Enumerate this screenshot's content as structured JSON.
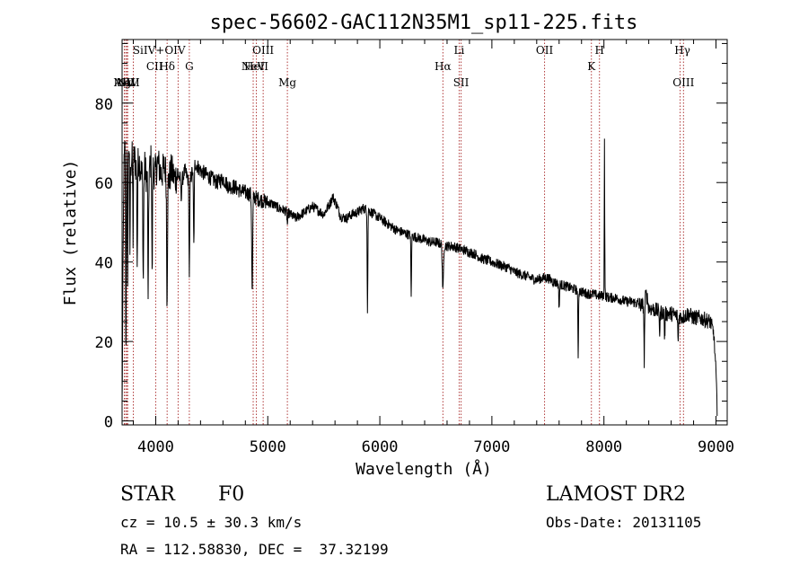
{
  "chart_data": {
    "type": "line",
    "title": "spec-56602-GAC112N35M1_sp11-225.fits",
    "xlabel": "Wavelength (Å)",
    "ylabel": "Flux (relative)",
    "xlim": [
      3700,
      9100
    ],
    "ylim": [
      -1,
      96
    ],
    "xticks": [
      4000,
      5000,
      6000,
      7000,
      8000,
      9000
    ],
    "yticks": [
      0,
      20,
      40,
      60,
      80
    ],
    "grid": false,
    "line_color": "#000000",
    "marker_color": "#b03a3a",
    "continuum": [
      [
        3700,
        3
      ],
      [
        3715,
        62
      ],
      [
        3730,
        72
      ],
      [
        3745,
        66
      ],
      [
        3760,
        70
      ],
      [
        3780,
        65
      ],
      [
        3800,
        68
      ],
      [
        3825,
        64
      ],
      [
        3850,
        66
      ],
      [
        3875,
        62
      ],
      [
        3900,
        64
      ],
      [
        3930,
        60
      ],
      [
        3960,
        66
      ],
      [
        3990,
        62
      ],
      [
        4020,
        65
      ],
      [
        4050,
        62
      ],
      [
        4080,
        64
      ],
      [
        4110,
        60
      ],
      [
        4140,
        63
      ],
      [
        4170,
        61
      ],
      [
        4200,
        62
      ],
      [
        4230,
        60
      ],
      [
        4260,
        63
      ],
      [
        4300,
        60
      ],
      [
        4350,
        65
      ],
      [
        4400,
        63
      ],
      [
        4450,
        62
      ],
      [
        4500,
        61
      ],
      [
        4550,
        60
      ],
      [
        4600,
        61
      ],
      [
        4650,
        59
      ],
      [
        4700,
        59
      ],
      [
        4750,
        58
      ],
      [
        4800,
        57.5
      ],
      [
        4850,
        57
      ],
      [
        4900,
        56
      ],
      [
        4950,
        55.5
      ],
      [
        5000,
        55
      ],
      [
        5050,
        54.5
      ],
      [
        5100,
        53.5
      ],
      [
        5150,
        53
      ],
      [
        5200,
        52
      ],
      [
        5250,
        51
      ],
      [
        5300,
        52
      ],
      [
        5350,
        53
      ],
      [
        5400,
        54
      ],
      [
        5450,
        53
      ],
      [
        5500,
        52
      ],
      [
        5560,
        55
      ],
      [
        5580,
        56.5
      ],
      [
        5620,
        54
      ],
      [
        5650,
        51.5
      ],
      [
        5700,
        51
      ],
      [
        5750,
        52
      ],
      [
        5800,
        52.5
      ],
      [
        5850,
        53.5
      ],
      [
        5900,
        53
      ],
      [
        5950,
        52
      ],
      [
        6000,
        51
      ],
      [
        6050,
        50
      ],
      [
        6100,
        49
      ],
      [
        6150,
        48
      ],
      [
        6200,
        47.5
      ],
      [
        6250,
        47
      ],
      [
        6300,
        46.5
      ],
      [
        6350,
        46
      ],
      [
        6400,
        45.5
      ],
      [
        6450,
        45
      ],
      [
        6500,
        45
      ],
      [
        6550,
        44.5
      ],
      [
        6600,
        44
      ],
      [
        6650,
        44
      ],
      [
        6700,
        43.5
      ],
      [
        6750,
        43
      ],
      [
        6800,
        42.5
      ],
      [
        6850,
        42
      ],
      [
        6900,
        41
      ],
      [
        6950,
        40.5
      ],
      [
        7000,
        40
      ],
      [
        7050,
        39.5
      ],
      [
        7100,
        39
      ],
      [
        7150,
        38.5
      ],
      [
        7200,
        37.5
      ],
      [
        7250,
        37
      ],
      [
        7300,
        36.5
      ],
      [
        7350,
        36
      ],
      [
        7400,
        35.5
      ],
      [
        7450,
        36
      ],
      [
        7500,
        36
      ],
      [
        7550,
        35
      ],
      [
        7600,
        34.5
      ],
      [
        7650,
        34
      ],
      [
        7700,
        33.5
      ],
      [
        7750,
        33
      ],
      [
        7800,
        32.5
      ],
      [
        7850,
        32
      ],
      [
        7900,
        32
      ],
      [
        7950,
        31.5
      ],
      [
        8000,
        31.5
      ],
      [
        8050,
        31
      ],
      [
        8100,
        31
      ],
      [
        8150,
        30.5
      ],
      [
        8200,
        30
      ],
      [
        8250,
        30
      ],
      [
        8300,
        29.5
      ],
      [
        8350,
        29
      ],
      [
        8380,
        32
      ],
      [
        8400,
        28.5
      ],
      [
        8450,
        28
      ],
      [
        8500,
        27.5
      ],
      [
        8550,
        27
      ],
      [
        8600,
        27
      ],
      [
        8650,
        26.5
      ],
      [
        8700,
        26
      ],
      [
        8750,
        27
      ],
      [
        8800,
        26
      ],
      [
        8850,
        26
      ],
      [
        8900,
        25.5
      ],
      [
        8950,
        25
      ],
      [
        8980,
        22
      ],
      [
        9000,
        12
      ],
      [
        9010,
        3
      ]
    ],
    "absorption_lines": [
      {
        "x": 3734,
        "depth": 55,
        "width": 4
      },
      {
        "x": 3750,
        "depth": 30,
        "width": 4
      },
      {
        "x": 3770,
        "depth": 25,
        "width": 4
      },
      {
        "x": 3798,
        "depth": 22,
        "width": 4
      },
      {
        "x": 3835,
        "depth": 25,
        "width": 4
      },
      {
        "x": 3889,
        "depth": 28,
        "width": 5
      },
      {
        "x": 3933,
        "depth": 33,
        "width": 4
      },
      {
        "x": 3968,
        "depth": 30,
        "width": 4
      },
      {
        "x": 4101,
        "depth": 30,
        "width": 5
      },
      {
        "x": 4227,
        "depth": 4,
        "width": 4
      },
      {
        "x": 4300,
        "depth": 23,
        "width": 5
      },
      {
        "x": 4340,
        "depth": 20,
        "width": 5
      },
      {
        "x": 4861,
        "depth": 25,
        "width": 6
      },
      {
        "x": 5175,
        "depth": 3,
        "width": 5
      },
      {
        "x": 5890,
        "depth": 25,
        "width": 4
      },
      {
        "x": 6280,
        "depth": 16,
        "width": 4
      },
      {
        "x": 6563,
        "depth": 12,
        "width": 7
      },
      {
        "x": 7600,
        "depth": 6,
        "width": 5
      },
      {
        "x": 7770,
        "depth": 17,
        "width": 4
      },
      {
        "x": 8360,
        "depth": 15,
        "width": 4
      },
      {
        "x": 8498,
        "depth": 6,
        "width": 4
      },
      {
        "x": 8542,
        "depth": 7,
        "width": 4
      },
      {
        "x": 8662,
        "depth": 7,
        "width": 4
      }
    ],
    "emission_lines": [
      {
        "x": 8005,
        "height": 39,
        "width": 3
      }
    ],
    "line_markers": [
      {
        "name": "AlII",
        "x": 3720,
        "row": 2
      },
      {
        "name": "NV",
        "x": 3733,
        "row": 2
      },
      {
        "name": "MgII",
        "x": 3740,
        "row": 2
      },
      {
        "name": "NIV",
        "x": 3750,
        "row": 2
      },
      {
        "name": "SiIV+OIV",
        "x": 4030,
        "row": 0
      },
      {
        "name": "CII",
        "x": 3990,
        "row": 1
      },
      {
        "name": "Hδ",
        "x": 4102,
        "row": 1
      },
      {
        "name": "G",
        "x": 4300,
        "row": 1
      },
      {
        "name": "OIII",
        "x": 4959,
        "row": 0
      },
      {
        "name": "NeV",
        "x": 4870,
        "row": 1
      },
      {
        "name": "HeII",
        "x": 4898,
        "row": 1
      },
      {
        "name": "Mg",
        "x": 5175,
        "row": 2
      },
      {
        "name": "Hα",
        "x": 6563,
        "row": 1
      },
      {
        "name": "Li",
        "x": 6708,
        "row": 0
      },
      {
        "name": "SII",
        "x": 6725,
        "row": 2
      },
      {
        "name": "OII",
        "x": 7470,
        "row": 0
      },
      {
        "name": "K",
        "x": 7888,
        "row": 1
      },
      {
        "name": "H",
        "x": 7960,
        "row": 0
      },
      {
        "name": "Hγ",
        "x": 8700,
        "row": 0
      },
      {
        "name": "OIII",
        "x": 8710,
        "row": 2
      }
    ],
    "marker_lines": [
      3720,
      3733,
      3742,
      3750,
      3800,
      4000,
      4102,
      4200,
      4300,
      4870,
      4898,
      4959,
      5175,
      6563,
      6708,
      6725,
      7470,
      7888,
      7960,
      8680,
      8710
    ]
  },
  "info": {
    "class": "STAR",
    "subclass": "F0",
    "survey": "LAMOST DR2",
    "cz": "cz = 10.5 ± 30.3 km/s",
    "obs_date": "Obs-Date: 20131105",
    "radec": "RA = 112.58830, DEC =  37.32199"
  }
}
